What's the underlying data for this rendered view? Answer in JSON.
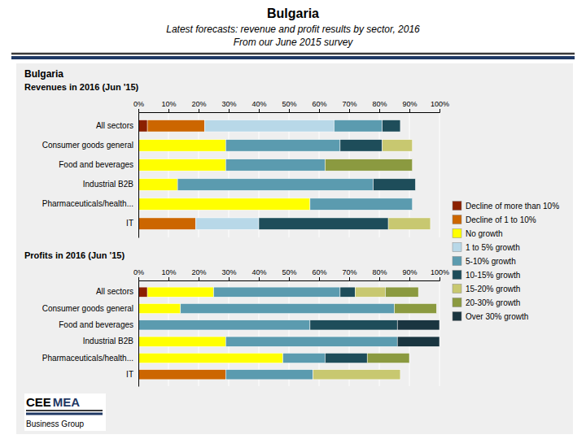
{
  "title": "Bulgaria",
  "subtitle": [
    "Latest forecasts: revenue and profit results by sector, 2016",
    "From our June 2015 survey"
  ],
  "annotations": [
    "Bulgaria",
    "CEE",
    "MEA",
    "Business Group"
  ],
  "chart_data": [
    {
      "type": "bar",
      "title": "Revenues in 2016 (Jun '15)",
      "orientation": "horizontal",
      "stacked": true,
      "grid": true,
      "legend": "right",
      "categories": [
        "All sectors",
        "Consumer goods general",
        "Food and beverages",
        "Industrial B2B",
        "Pharmaceuticals/health...",
        "IT"
      ],
      "series": [
        {
          "name": "Decline of more than 10%",
          "color": "#8B2000",
          "values": [
            3,
            0,
            0,
            0,
            0,
            0
          ]
        },
        {
          "name": "Decline of 1 to 10%",
          "color": "#CC6600",
          "values": [
            19,
            0,
            0,
            0,
            0,
            19
          ]
        },
        {
          "name": "No growth",
          "color": "#FFFF00",
          "values": [
            0,
            29,
            29,
            13,
            57,
            0
          ]
        },
        {
          "name": "1 to 5% growth",
          "color": "#B8D8E8",
          "values": [
            43,
            0,
            0,
            0,
            0,
            21
          ]
        },
        {
          "name": "5-10% growth",
          "color": "#5B9BAF",
          "values": [
            16,
            38,
            33,
            65,
            34,
            0
          ]
        },
        {
          "name": "10-15% growth",
          "color": "#1E4D5A",
          "values": [
            6,
            14,
            0,
            14,
            0,
            43
          ]
        },
        {
          "name": "15-20% growth",
          "color": "#C8C870",
          "values": [
            0,
            10,
            0,
            0,
            0,
            14
          ]
        },
        {
          "name": "20-30% growth",
          "color": "#8B9A40",
          "values": [
            0,
            0,
            29,
            0,
            0,
            0
          ]
        },
        {
          "name": "Over 30% growth",
          "color": "#1A3540",
          "values": [
            0,
            0,
            0,
            0,
            0,
            0
          ]
        }
      ],
      "xlim": [
        0,
        100
      ],
      "xticks": [
        {
          "value": 0,
          "label": "0%"
        },
        {
          "value": 10,
          "label": "10%"
        },
        {
          "value": 20,
          "label": "20%"
        },
        {
          "value": 30,
          "label": "30%"
        },
        {
          "value": 40,
          "label": "40%"
        },
        {
          "value": 50,
          "label": "50%"
        },
        {
          "value": 60,
          "label": "60%"
        },
        {
          "value": 70,
          "label": "70%"
        },
        {
          "value": 80,
          "label": "80%"
        },
        {
          "value": 90,
          "label": "90%"
        },
        {
          "value": 100,
          "label": "100%"
        }
      ]
    },
    {
      "type": "bar",
      "title": "Profits in 2016 (Jun '15)",
      "orientation": "horizontal",
      "stacked": true,
      "grid": true,
      "categories": [
        "All sectors",
        "Consumer goods general",
        "Food and beverages",
        "Industrial B2B",
        "Pharmaceuticals/health...",
        "IT"
      ],
      "series": [
        {
          "name": "Decline of more than 10%",
          "color": "#8B2000",
          "values": [
            3,
            0,
            0,
            0,
            0,
            0
          ]
        },
        {
          "name": "Decline of 1 to 10%",
          "color": "#CC6600",
          "values": [
            0,
            0,
            0,
            0,
            0,
            29
          ]
        },
        {
          "name": "No growth",
          "color": "#FFFF00",
          "values": [
            22,
            14,
            0,
            29,
            48,
            0
          ]
        },
        {
          "name": "1 to 5% growth",
          "color": "#B8D8E8",
          "values": [
            0,
            0,
            0,
            0,
            0,
            0
          ]
        },
        {
          "name": "5-10% growth",
          "color": "#5B9BAF",
          "values": [
            42,
            71,
            57,
            57,
            14,
            29
          ]
        },
        {
          "name": "10-15% growth",
          "color": "#1E4D5A",
          "values": [
            5,
            0,
            29,
            0,
            14,
            0
          ]
        },
        {
          "name": "15-20% growth",
          "color": "#C8C870",
          "values": [
            10,
            0,
            0,
            0,
            0,
            29
          ]
        },
        {
          "name": "20-30% growth",
          "color": "#8B9A40",
          "values": [
            11,
            14,
            0,
            0,
            14,
            0
          ]
        },
        {
          "name": "Over 30% growth",
          "color": "#1A3540",
          "values": [
            0,
            0,
            14,
            14,
            0,
            0
          ]
        }
      ],
      "xlim": [
        0,
        100
      ],
      "xticks": [
        {
          "value": 0,
          "label": "0%"
        },
        {
          "value": 10,
          "label": "10%"
        },
        {
          "value": 20,
          "label": "20%"
        },
        {
          "value": 30,
          "label": "30%"
        },
        {
          "value": 40,
          "label": "40%"
        },
        {
          "value": 50,
          "label": "50%"
        },
        {
          "value": 60,
          "label": "60%"
        },
        {
          "value": 70,
          "label": "70%"
        },
        {
          "value": 80,
          "label": "80%"
        },
        {
          "value": 90,
          "label": "90%"
        },
        {
          "value": 100,
          "label": "100%"
        }
      ]
    }
  ]
}
